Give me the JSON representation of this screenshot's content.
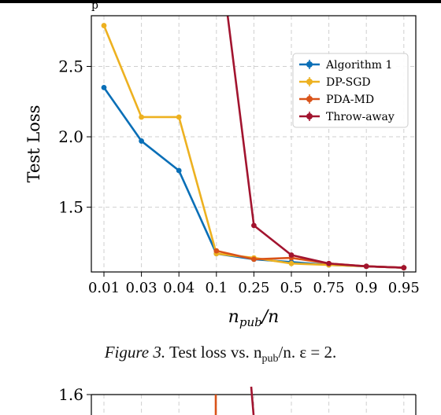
{
  "page_fragment": "p",
  "caption": {
    "label": "Figure 3.",
    "text": " Test loss vs. n",
    "sub": "pub",
    "tail": "/n. ε = 2."
  },
  "chart_data": [
    {
      "type": "line",
      "categories": [
        "0.01",
        "0.03",
        "0.04",
        "0.1",
        "0.25",
        "0.5",
        "0.75",
        "0.9",
        "0.95"
      ],
      "ylabel": "Test Loss",
      "xlabel": "n_pub/n",
      "ylim": [
        1.04,
        2.86
      ],
      "yticks": [
        "1.5",
        "2.0",
        "2.5"
      ],
      "ytick_values": [
        1.5,
        2.0,
        2.5
      ],
      "grid": true,
      "legend_position": "top-right",
      "series": [
        {
          "name": "Algorithm 1",
          "color": "#0a6fb7",
          "values": [
            2.35,
            1.97,
            1.76,
            1.17,
            1.13,
            1.11,
            1.09,
            1.08,
            1.07
          ]
        },
        {
          "name": "DP-SGD",
          "color": "#edb120",
          "values": [
            2.79,
            2.14,
            2.14,
            1.17,
            1.14,
            1.1,
            1.09,
            1.08,
            1.07
          ]
        },
        {
          "name": "PDA-MD",
          "color": "#d95319",
          "values": [
            null,
            null,
            null,
            1.19,
            1.13,
            1.14,
            1.1,
            1.08,
            1.07
          ]
        },
        {
          "name": "Throw-away",
          "color": "#a2142f",
          "values": [
            null,
            null,
            null,
            3.5,
            1.37,
            1.16,
            1.1,
            1.08,
            1.07
          ]
        }
      ]
    },
    {
      "type": "line",
      "partial": true,
      "yticks": [
        "1.6"
      ],
      "ytick_values": [
        1.6
      ],
      "series_colors": [
        "#d95319",
        "#a2142f"
      ]
    }
  ]
}
